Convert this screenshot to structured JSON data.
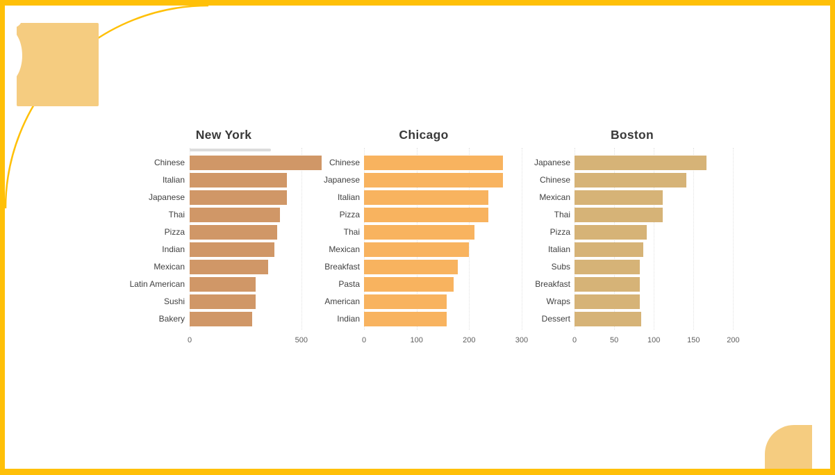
{
  "page": {
    "background": "#FFFFFF",
    "frame_color": "#FFC008",
    "decoration_color": "#F5CC80",
    "grid_color": "#E1E1E1",
    "title_color": "#3A3A3A",
    "label_color": "#3F3F3F",
    "tick_color": "#5E5E5E",
    "scrollbar_color": "#DCDCDC"
  },
  "chart_data": [
    {
      "type": "bar",
      "orientation": "horizontal",
      "title": "New York",
      "bar_color": "#D09767",
      "categories": [
        "Chinese",
        "Italian",
        "Japanese",
        "Thai",
        "Pizza",
        "Indian",
        "Mexican",
        "Latin American",
        "Sushi",
        "Bakery"
      ],
      "values": [
        590,
        435,
        435,
        405,
        392,
        380,
        351,
        295,
        296,
        281
      ],
      "axis": {
        "ticks": [
          0,
          500
        ],
        "xmax": 600,
        "gridlines": "dotted-vertical"
      },
      "legend": "none",
      "scrollbar": true
    },
    {
      "type": "bar",
      "orientation": "horizontal",
      "title": "Chicago",
      "bar_color": "#F8B35F",
      "categories": [
        "Chinese",
        "Japanese",
        "Italian",
        "Pizza",
        "Thai",
        "Mexican",
        "Breakfast",
        "Pasta",
        "American",
        "Indian"
      ],
      "values": [
        265,
        265,
        237,
        237,
        210,
        199,
        179,
        171,
        157,
        157
      ],
      "axis": {
        "ticks": [
          0,
          100,
          200,
          300
        ],
        "xmax": 312,
        "gridlines": "dotted-vertical"
      },
      "legend": "none",
      "scrollbar": false
    },
    {
      "type": "bar",
      "orientation": "horizontal",
      "title": "Boston",
      "bar_color": "#D6B377",
      "categories": [
        "Japanese",
        "Chinese",
        "Mexican",
        "Thai",
        "Pizza",
        "Italian",
        "Subs",
        "Breakfast",
        "Wraps",
        "Dessert"
      ],
      "values": [
        166,
        141,
        111,
        111,
        91,
        87,
        82,
        82,
        82,
        84
      ],
      "axis": {
        "ticks": [
          0,
          50,
          100,
          150,
          200
        ],
        "xmax": 204,
        "gridlines": "dotted-vertical"
      },
      "legend": "none",
      "scrollbar": false
    }
  ]
}
